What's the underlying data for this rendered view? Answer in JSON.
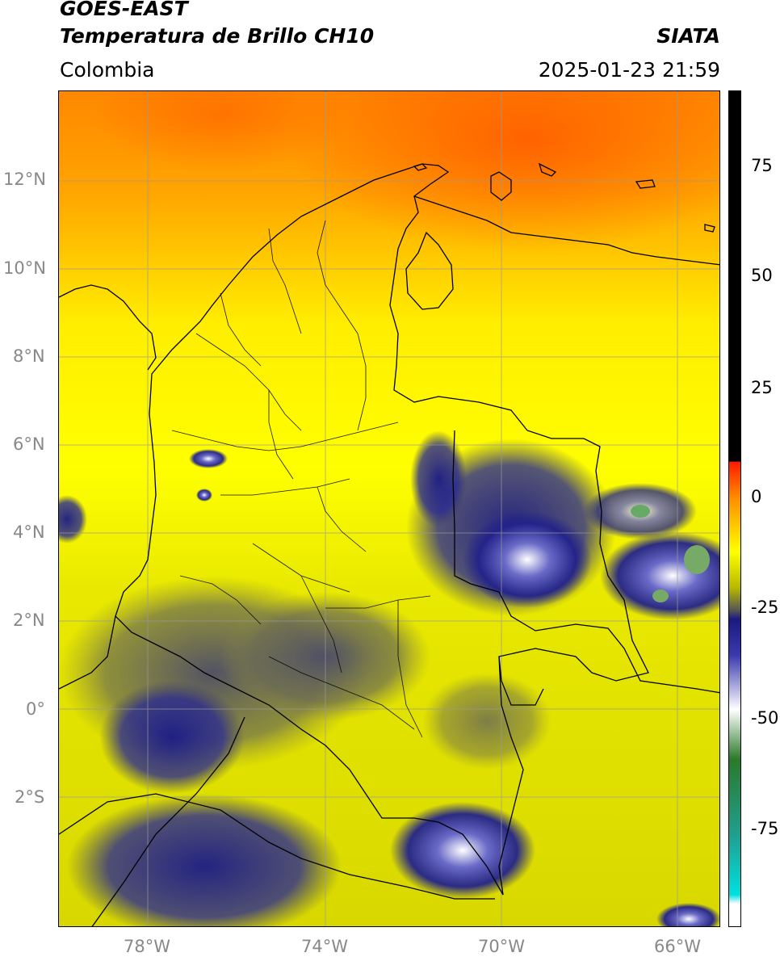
{
  "header": {
    "line1": "GOES-EAST",
    "line2": "Temperatura de Brillo CH10",
    "brand": "SIATA",
    "region": "Colombia",
    "timestamp": "2025-01-23 21:59"
  },
  "map": {
    "lat_labels": [
      "12°N",
      "10°N",
      "8°N",
      "6°N",
      "4°N",
      "2°N",
      "0°",
      "2°S"
    ],
    "lon_labels": [
      "78°W",
      "74°W",
      "70°W",
      "66°W"
    ]
  },
  "colorbar": {
    "ticks": [
      "75",
      "50",
      "25",
      "0",
      "-25",
      "-50",
      "-75"
    ],
    "range": [
      -95,
      90
    ],
    "stops": [
      {
        "value": 90,
        "color": "#000000"
      },
      {
        "value": 8,
        "color": "#000000"
      },
      {
        "value": 7.9,
        "color": "#ff1a00"
      },
      {
        "value": 0,
        "color": "#ff8c00"
      },
      {
        "value": -12,
        "color": "#ffff00"
      },
      {
        "value": -20,
        "color": "#b8b800"
      },
      {
        "value": -25,
        "color": "#555555"
      },
      {
        "value": -27,
        "color": "#1a1a80"
      },
      {
        "value": -35,
        "color": "#3a3ab0"
      },
      {
        "value": -47,
        "color": "#ffffff"
      },
      {
        "value": -58,
        "color": "#2a7a2a"
      },
      {
        "value": -75,
        "color": "#20a090"
      },
      {
        "value": -88,
        "color": "#00e0e0"
      },
      {
        "value": -90,
        "color": "#ffffff"
      }
    ]
  }
}
